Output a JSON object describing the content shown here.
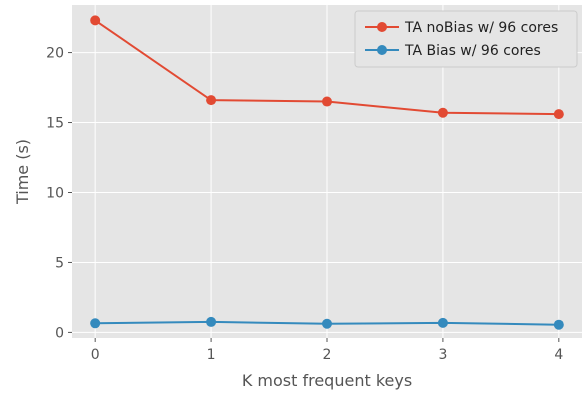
{
  "chart_data": {
    "type": "line",
    "title": "",
    "xlabel": "K most frequent keys",
    "ylabel": "Time (s)",
    "x": [
      0,
      1,
      2,
      3,
      4
    ],
    "x_ticks": [
      0,
      1,
      2,
      3,
      4
    ],
    "y_ticks": [
      0,
      5,
      10,
      15,
      20
    ],
    "xlim": [
      -0.2,
      4.2
    ],
    "ylim": [
      -0.4,
      23.4
    ],
    "grid": true,
    "legend_position": "top-right",
    "series": [
      {
        "name": "TA noBias w/ 96 cores",
        "color": "#E24A33",
        "values": [
          22.3,
          16.6,
          16.5,
          15.7,
          15.6
        ]
      },
      {
        "name": "TA Bias w/ 96 cores",
        "color": "#348ABD",
        "values": [
          0.65,
          0.75,
          0.62,
          0.68,
          0.55
        ]
      }
    ]
  }
}
